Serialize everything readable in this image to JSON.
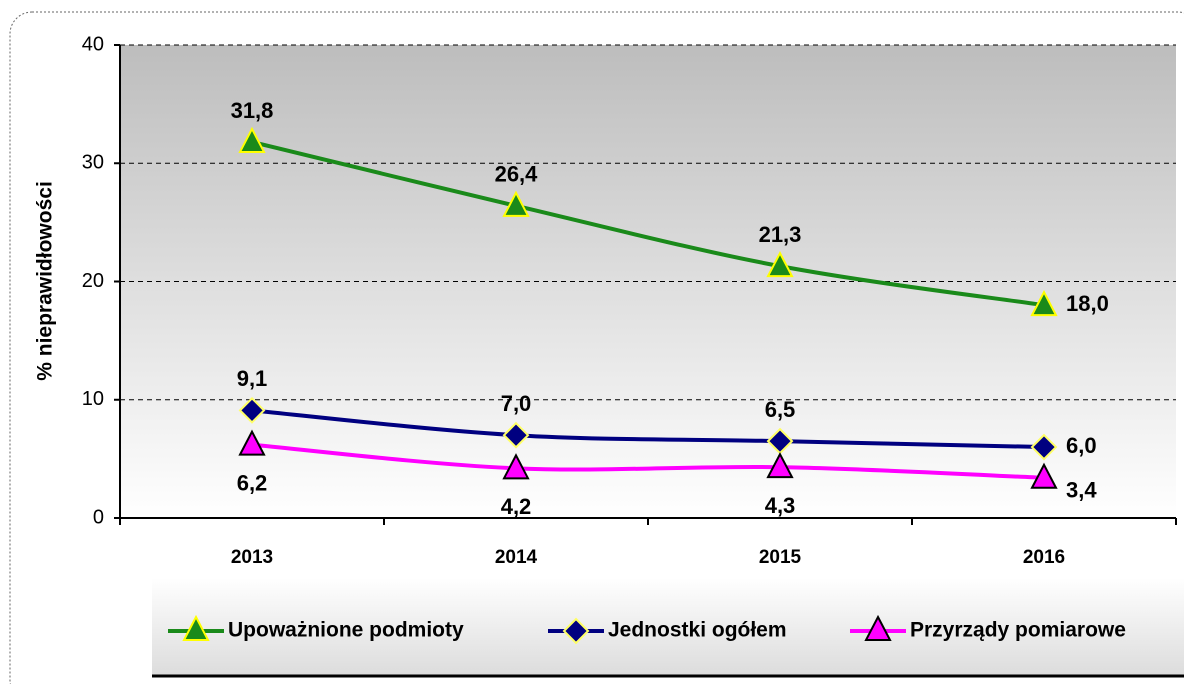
{
  "chart_data": {
    "type": "line",
    "y_label": "% nieprawidłowości",
    "categories": [
      "2013",
      "2014",
      "2015",
      "2016"
    ],
    "series": [
      {
        "name": "Upoważnione podmioty",
        "color": "#1a8a1a",
        "marker": "triangle",
        "values": [
          31.8,
          26.4,
          21.3,
          18.0
        ],
        "value_labels": [
          "31,8",
          "26,4",
          "21,3",
          "18,0"
        ]
      },
      {
        "name": "Jednostki ogółem",
        "color": "#000080",
        "marker": "diamond",
        "values": [
          9.1,
          7.0,
          6.5,
          6.0
        ],
        "value_labels": [
          "9,1",
          "7,0",
          "6,5",
          "6,0"
        ]
      },
      {
        "name": "Przyrządy pomiarowe",
        "color": "#ff00ff",
        "marker": "triangle",
        "values": [
          6.2,
          4.2,
          4.3,
          3.4
        ],
        "value_labels": [
          "6,2",
          "4,2",
          "4,3",
          "3,4"
        ]
      }
    ],
    "ylim": [
      0,
      40
    ],
    "yticks": [
      0,
      10,
      20,
      30,
      40
    ],
    "grid": true,
    "legend": "bottom"
  }
}
